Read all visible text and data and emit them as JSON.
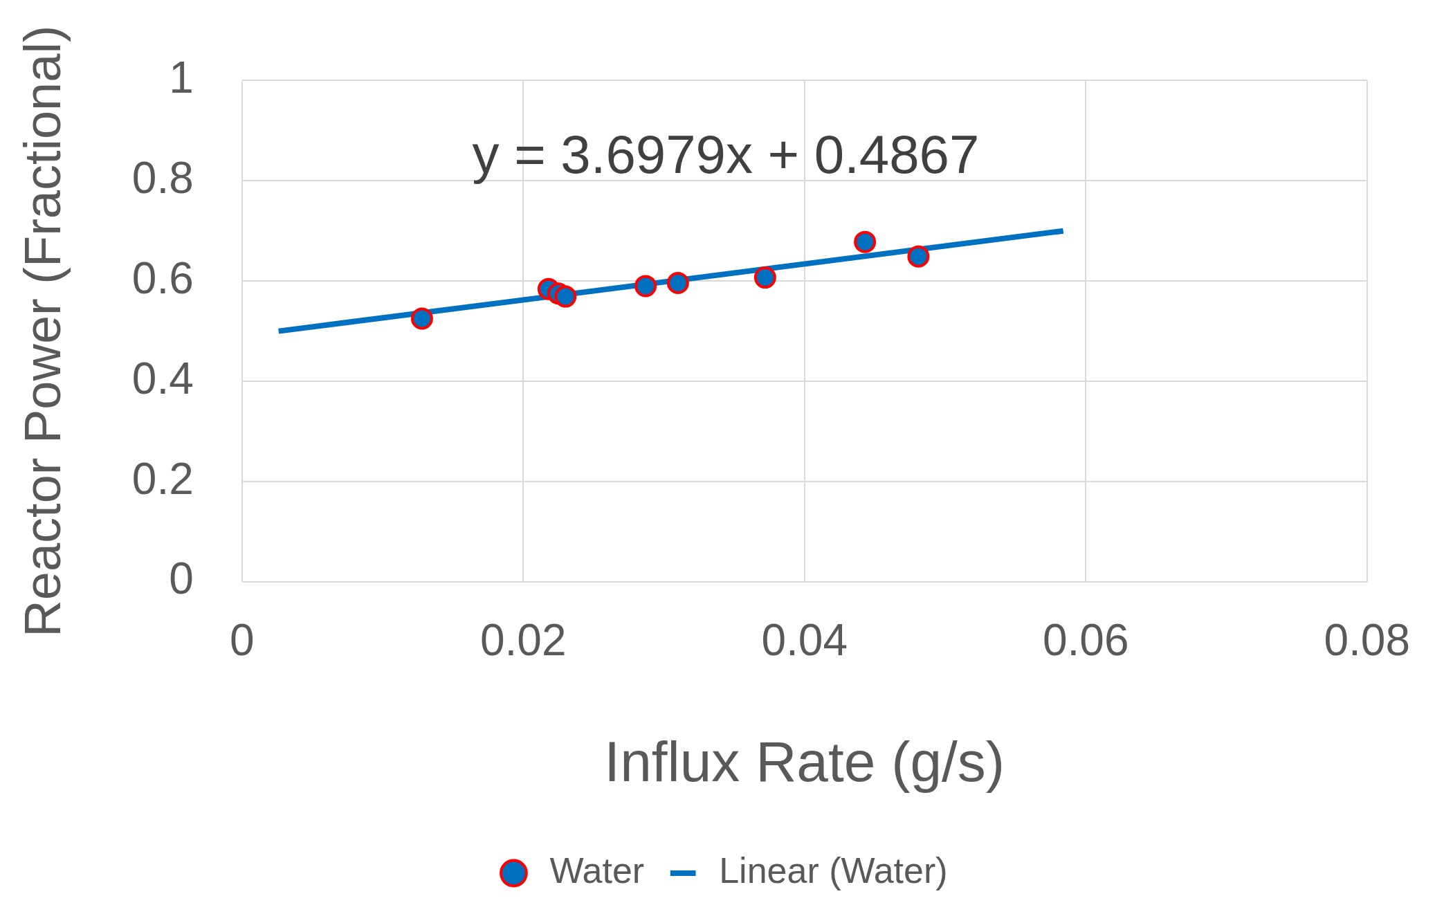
{
  "chart_data": {
    "type": "scatter",
    "xlabel": "Influx Rate (g/s)",
    "ylabel": "Reactor Power (Fractional)",
    "xlim": [
      0,
      0.08
    ],
    "xticks": [
      0,
      0.02,
      0.04,
      0.06,
      0.08
    ],
    "ylim": [
      0,
      1
    ],
    "yticks": [
      0,
      0.2,
      0.4,
      0.6,
      0.8,
      1
    ],
    "grid": true,
    "legend": "bottom",
    "annotations": [
      "y = 3.6979x + 0.4867"
    ],
    "series": [
      {
        "name": "Water",
        "type": "scatter",
        "color": "#0070c0",
        "marker": "circle",
        "x": [
          0.0128,
          0.0218,
          0.0225,
          0.023,
          0.0287,
          0.031,
          0.0372,
          0.0443,
          0.0481
        ],
        "values": [
          0.525,
          0.584,
          0.575,
          0.569,
          0.59,
          0.596,
          0.607,
          0.678,
          0.649
        ]
      },
      {
        "name": "Linear (Water)",
        "type": "line",
        "color": "#0070c0",
        "x": [
          0.0026,
          0.0584
        ],
        "values": [
          0.5,
          0.7
        ],
        "marker": "none"
      }
    ]
  }
}
